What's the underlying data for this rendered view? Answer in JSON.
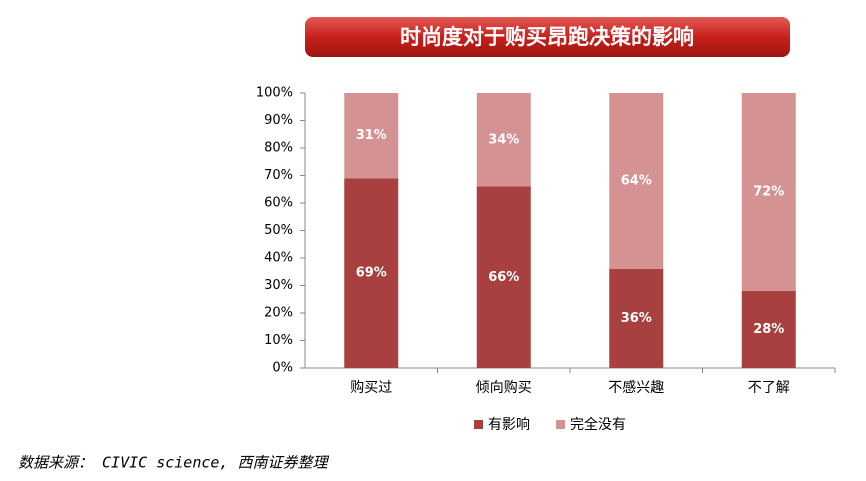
{
  "chart_data": {
    "type": "stacked_bar",
    "title": "时尚度对于购买昂跑决策的影响",
    "categories": [
      "购买过",
      "倾向购买",
      "不感兴趣",
      "不了解"
    ],
    "series": [
      {
        "name": "有影响",
        "color": "#a8403f",
        "values": [
          69,
          66,
          36,
          28
        ],
        "value_labels": [
          "69%",
          "66%",
          "36%",
          "28%"
        ]
      },
      {
        "name": "完全没有",
        "color": "#d49292",
        "values": [
          31,
          34,
          64,
          72
        ],
        "value_labels": [
          "31%",
          "34%",
          "64%",
          "72%"
        ]
      }
    ],
    "ylim": [
      0,
      100
    ],
    "yticks": [
      {
        "value": 0,
        "label": "0%"
      },
      {
        "value": 10,
        "label": "10%"
      },
      {
        "value": 20,
        "label": "20%"
      },
      {
        "value": 30,
        "label": "30%"
      },
      {
        "value": 40,
        "label": "40%"
      },
      {
        "value": 50,
        "label": "50%"
      },
      {
        "value": 60,
        "label": "60%"
      },
      {
        "value": 70,
        "label": "70%"
      },
      {
        "value": 80,
        "label": "80%"
      },
      {
        "value": 90,
        "label": "90%"
      },
      {
        "value": 100,
        "label": "100%"
      }
    ],
    "source": "数据来源： CIVIC science, 西南证券整理"
  }
}
